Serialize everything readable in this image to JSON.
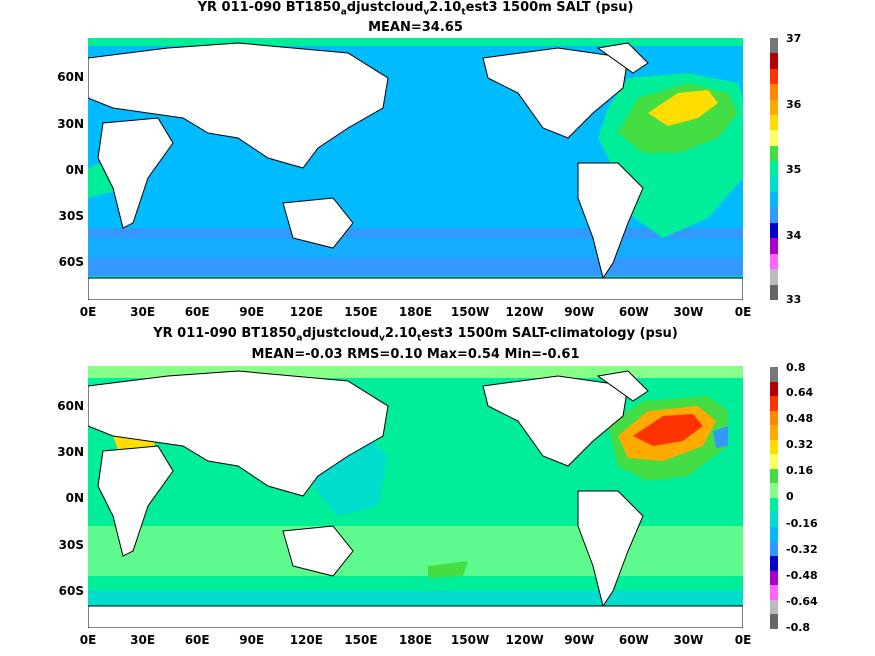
{
  "panels": [
    {
      "title_parts": [
        "YR 011-090 BT1850",
        "a",
        "djustcloud",
        "v",
        "2.10",
        "t",
        "est3 1500m SALT (psu)"
      ],
      "subtitle": "MEAN=34.65",
      "colorbar_labels": [
        "37",
        "36",
        "35",
        "34",
        "33"
      ],
      "colorbar_colors": [
        "#777777",
        "#b00000",
        "#ff3300",
        "#ff8800",
        "#ffaa00",
        "#ffdd00",
        "#ffff66",
        "#44dd44",
        "#00ee99",
        "#00ddcc",
        "#00bbff",
        "#3399ff",
        "#0000cc",
        "#aa00cc",
        "#ff66ff",
        "#bbbbbb",
        "#666666"
      ]
    },
    {
      "title_parts": [
        "YR 011-090 BT1850",
        "a",
        "djustcloud",
        "v",
        "2.10",
        "t",
        "est3 1500m SALT-climatology (psu)"
      ],
      "subtitle": "MEAN=-0.03   RMS=0.10   Max=0.54   Min=-0.61",
      "colorbar_labels": [
        "0.8",
        "0.64",
        "0.48",
        "0.32",
        "0.16",
        "0",
        "-0.16",
        "-0.32",
        "-0.48",
        "-0.64",
        "-0.8"
      ],
      "colorbar_colors": [
        "#777777",
        "#b00000",
        "#ff3300",
        "#ff8800",
        "#ffaa00",
        "#ffdd00",
        "#ffff66",
        "#44dd44",
        "#88ff88",
        "#00ee99",
        "#00ddcc",
        "#00bbff",
        "#3399ff",
        "#0000cc",
        "#aa00cc",
        "#ff66ff",
        "#bbbbbb",
        "#666666"
      ]
    }
  ],
  "lat_labels": [
    "60N",
    "30N",
    "0N",
    "30S",
    "60S"
  ],
  "lon_labels": [
    "0E",
    "30E",
    "60E",
    "90E",
    "120E",
    "150E",
    "180E",
    "150W",
    "120W",
    "90W",
    "60W",
    "30W",
    "0E"
  ],
  "colors": {
    "land": "#ffffff",
    "coast": "#000000"
  }
}
